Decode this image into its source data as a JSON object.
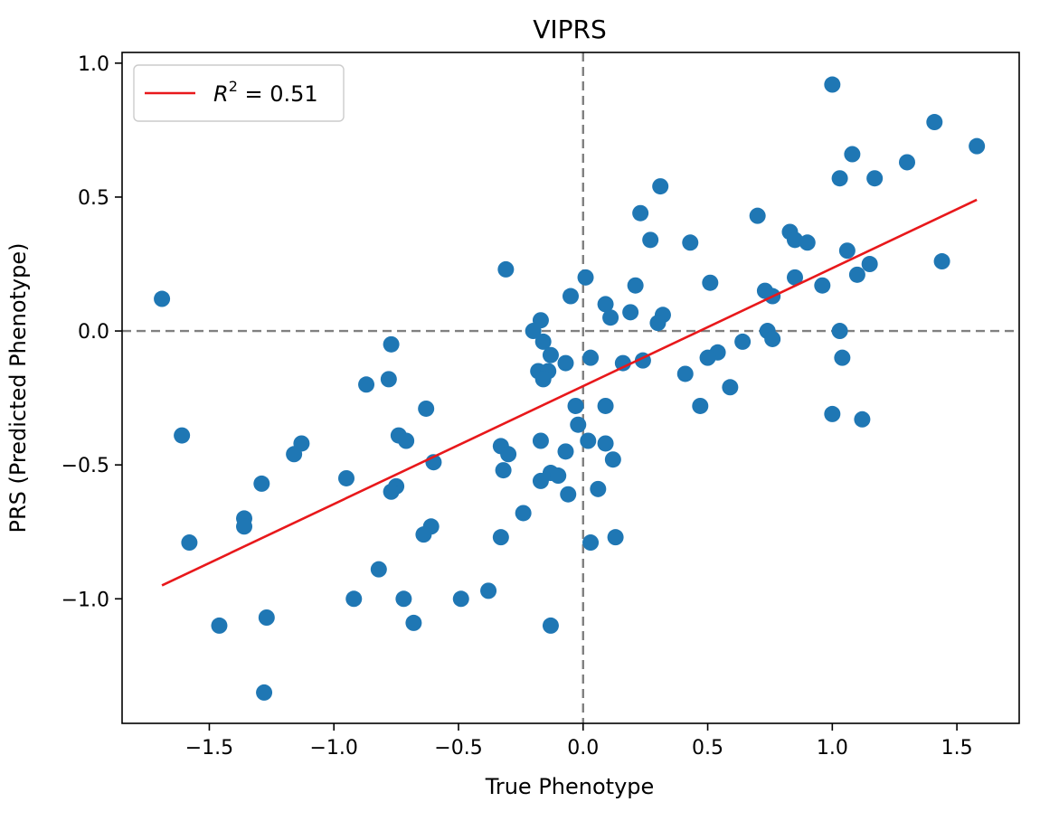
{
  "chart_data": {
    "type": "scatter",
    "title": "VIPRS",
    "xlabel": "True Phenotype",
    "ylabel": "PRS (Predicted Phenotype)",
    "xlim": [
      -1.85,
      1.75
    ],
    "ylim": [
      -1.465,
      1.04
    ],
    "xticks": [
      {
        "value": -1.5,
        "label": "−1.5"
      },
      {
        "value": -1.0,
        "label": "−1.0"
      },
      {
        "value": -0.5,
        "label": "−0.5"
      },
      {
        "value": 0.0,
        "label": "0.0"
      },
      {
        "value": 0.5,
        "label": "0.5"
      },
      {
        "value": 1.0,
        "label": "1.0"
      },
      {
        "value": 1.5,
        "label": "1.5"
      }
    ],
    "yticks": [
      {
        "value": -1.0,
        "label": "−1.0"
      },
      {
        "value": -0.5,
        "label": "−0.5"
      },
      {
        "value": 0.0,
        "label": "0.0"
      },
      {
        "value": 0.5,
        "label": "0.5"
      },
      {
        "value": 1.0,
        "label": "1.0"
      }
    ],
    "reference_lines": {
      "x": 0.0,
      "y": 0.0,
      "style": "dashed",
      "color": "#808080"
    },
    "series": [
      {
        "kind": "points",
        "color": "#1f77b4",
        "points": [
          [
            1.0,
            0.92
          ],
          [
            1.41,
            0.78
          ],
          [
            1.58,
            0.69
          ],
          [
            1.08,
            0.66
          ],
          [
            1.3,
            0.63
          ],
          [
            1.03,
            0.57
          ],
          [
            1.17,
            0.57
          ],
          [
            0.31,
            0.54
          ],
          [
            0.23,
            0.44
          ],
          [
            0.7,
            0.43
          ],
          [
            0.83,
            0.37
          ],
          [
            0.27,
            0.34
          ],
          [
            0.85,
            0.34
          ],
          [
            0.9,
            0.33
          ],
          [
            0.43,
            0.33
          ],
          [
            1.06,
            0.3
          ],
          [
            1.44,
            0.26
          ],
          [
            1.15,
            0.25
          ],
          [
            -0.31,
            0.23
          ],
          [
            1.1,
            0.21
          ],
          [
            0.01,
            0.2
          ],
          [
            0.85,
            0.2
          ],
          [
            0.51,
            0.18
          ],
          [
            0.21,
            0.17
          ],
          [
            0.96,
            0.17
          ],
          [
            0.73,
            0.15
          ],
          [
            0.76,
            0.13
          ],
          [
            -0.05,
            0.13
          ],
          [
            -1.69,
            0.12
          ],
          [
            0.09,
            0.1
          ],
          [
            0.19,
            0.07
          ],
          [
            0.32,
            0.06
          ],
          [
            0.11,
            0.05
          ],
          [
            -0.17,
            0.04
          ],
          [
            0.3,
            0.03
          ],
          [
            -0.2,
            0.0
          ],
          [
            0.74,
            0.0
          ],
          [
            1.03,
            0.0
          ],
          [
            -0.16,
            -0.04
          ],
          [
            0.76,
            -0.03
          ],
          [
            -0.77,
            -0.05
          ],
          [
            0.64,
            -0.04
          ],
          [
            0.54,
            -0.08
          ],
          [
            -0.13,
            -0.09
          ],
          [
            1.04,
            -0.1
          ],
          [
            0.03,
            -0.1
          ],
          [
            0.5,
            -0.1
          ],
          [
            0.24,
            -0.11
          ],
          [
            0.16,
            -0.12
          ],
          [
            -0.07,
            -0.12
          ],
          [
            -0.18,
            -0.15
          ],
          [
            -0.14,
            -0.15
          ],
          [
            -0.16,
            -0.18
          ],
          [
            0.41,
            -0.16
          ],
          [
            -0.78,
            -0.18
          ],
          [
            -0.87,
            -0.2
          ],
          [
            0.59,
            -0.21
          ],
          [
            -0.63,
            -0.29
          ],
          [
            0.47,
            -0.28
          ],
          [
            0.09,
            -0.28
          ],
          [
            -0.03,
            -0.28
          ],
          [
            1.0,
            -0.31
          ],
          [
            1.12,
            -0.33
          ],
          [
            -0.02,
            -0.35
          ],
          [
            -1.61,
            -0.39
          ],
          [
            -0.74,
            -0.39
          ],
          [
            -0.71,
            -0.41
          ],
          [
            -1.13,
            -0.42
          ],
          [
            -0.17,
            -0.41
          ],
          [
            0.02,
            -0.41
          ],
          [
            0.09,
            -0.42
          ],
          [
            -0.33,
            -0.43
          ],
          [
            -1.16,
            -0.46
          ],
          [
            -0.3,
            -0.46
          ],
          [
            -0.07,
            -0.45
          ],
          [
            0.12,
            -0.48
          ],
          [
            -0.6,
            -0.49
          ],
          [
            -0.32,
            -0.52
          ],
          [
            -0.13,
            -0.53
          ],
          [
            -0.1,
            -0.54
          ],
          [
            -0.95,
            -0.55
          ],
          [
            -0.17,
            -0.56
          ],
          [
            -1.29,
            -0.57
          ],
          [
            -0.75,
            -0.58
          ],
          [
            -0.77,
            -0.6
          ],
          [
            0.06,
            -0.59
          ],
          [
            -0.06,
            -0.61
          ],
          [
            -0.24,
            -0.68
          ],
          [
            -1.36,
            -0.7
          ],
          [
            -1.36,
            -0.73
          ],
          [
            -0.61,
            -0.73
          ],
          [
            -0.64,
            -0.76
          ],
          [
            -0.33,
            -0.77
          ],
          [
            0.13,
            -0.77
          ],
          [
            0.03,
            -0.79
          ],
          [
            -1.58,
            -0.79
          ],
          [
            -0.82,
            -0.89
          ],
          [
            -0.38,
            -0.97
          ],
          [
            -0.92,
            -1.0
          ],
          [
            -0.72,
            -1.0
          ],
          [
            -0.49,
            -1.0
          ],
          [
            -1.27,
            -1.07
          ],
          [
            -1.46,
            -1.1
          ],
          [
            -0.68,
            -1.09
          ],
          [
            -0.13,
            -1.1
          ],
          [
            -1.28,
            -1.35
          ]
        ]
      },
      {
        "kind": "fit-line",
        "name": "R² = 0.51",
        "color": "#e8181b",
        "x": [
          -1.69,
          1.58
        ],
        "y": [
          -0.95,
          0.49
        ]
      }
    ],
    "legend": {
      "position": "top-left",
      "entries": [
        {
          "label_base": "R",
          "label_sup": "2",
          "label_rest": " = 0.51"
        }
      ]
    },
    "grid": false
  }
}
